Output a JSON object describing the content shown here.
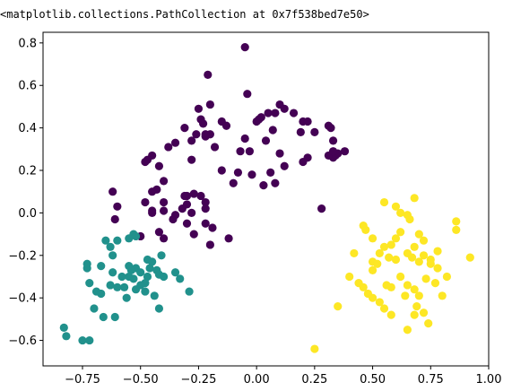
{
  "output": {
    "repr": "<matplotlib.collections.PathCollection at 0x7f538bed7e50>"
  },
  "colors": {
    "cluster_0": "#440154",
    "cluster_1": "#21918c",
    "cluster_2": "#fde725",
    "axes": "#000000",
    "background": "#ffffff"
  },
  "chart_data": {
    "type": "scatter",
    "title": "",
    "xlabel": "",
    "ylabel": "",
    "xlim": [
      -0.92,
      1.0
    ],
    "ylim": [
      -0.72,
      0.85
    ],
    "grid": false,
    "legend": "none",
    "x_ticks": [
      {
        "value": -0.75,
        "label": "−0.75"
      },
      {
        "value": -0.5,
        "label": "−0.50"
      },
      {
        "value": -0.25,
        "label": "−0.25"
      },
      {
        "value": 0.0,
        "label": "0.00"
      },
      {
        "value": 0.25,
        "label": "0.25"
      },
      {
        "value": 0.5,
        "label": "0.50"
      },
      {
        "value": 0.75,
        "label": "0.75"
      },
      {
        "value": 1.0,
        "label": "1.00"
      }
    ],
    "y_ticks": [
      {
        "value": -0.6,
        "label": "−0.6"
      },
      {
        "value": -0.4,
        "label": "−0.4"
      },
      {
        "value": -0.2,
        "label": "−0.2"
      },
      {
        "value": 0.0,
        "label": "0.0"
      },
      {
        "value": 0.2,
        "label": "0.2"
      },
      {
        "value": 0.4,
        "label": "0.4"
      },
      {
        "value": 0.6,
        "label": "0.6"
      },
      {
        "value": 0.8,
        "label": "0.8"
      }
    ],
    "series": [
      {
        "color": "#440154",
        "x": [
          -0.05,
          -0.21,
          -0.04,
          0.1,
          0.05,
          0.02,
          0.16,
          0.12,
          0.2,
          -0.2,
          -0.25,
          -0.24,
          -0.23,
          -0.26,
          -0.22,
          -0.31,
          -0.15,
          -0.13,
          0.22,
          0.19,
          0.25,
          0.31,
          0.32,
          0.33,
          0.07,
          0.04,
          0.08,
          0.0,
          0.01,
          -0.05,
          -0.03,
          -0.07,
          -0.18,
          -0.2,
          -0.22,
          -0.28,
          -0.35,
          -0.38,
          -0.45,
          -0.47,
          -0.48,
          -0.42,
          -0.4,
          -0.43,
          -0.45,
          -0.28,
          -0.15,
          -0.1,
          -0.08,
          0.03,
          0.08,
          0.12,
          0.34,
          0.35,
          0.33,
          0.31,
          0.38,
          0.22,
          0.33,
          0.1,
          0.06,
          -0.02,
          -0.3,
          -0.31,
          -0.27,
          -0.24,
          -0.22,
          -0.3,
          -0.32,
          -0.22,
          -0.28,
          -0.22,
          -0.19,
          -0.12,
          -0.2,
          -0.36,
          -0.4,
          -0.45,
          -0.62,
          -0.6,
          -0.61,
          -0.5,
          -0.4,
          -0.42,
          -0.3,
          -0.27,
          -0.4,
          -0.48,
          -0.45,
          -0.35,
          0.28,
          0.2
        ],
        "y": [
          0.78,
          0.65,
          0.56,
          0.51,
          0.47,
          0.45,
          0.47,
          0.49,
          0.43,
          0.51,
          0.49,
          0.44,
          0.42,
          0.37,
          0.36,
          0.4,
          0.43,
          0.41,
          0.43,
          0.38,
          0.38,
          0.41,
          0.4,
          0.34,
          0.39,
          0.34,
          0.47,
          0.43,
          0.44,
          0.35,
          0.29,
          0.29,
          0.31,
          0.37,
          0.37,
          0.34,
          0.33,
          0.31,
          0.27,
          0.25,
          0.24,
          0.22,
          0.15,
          0.11,
          0.1,
          0.25,
          0.2,
          0.14,
          0.19,
          0.13,
          0.14,
          0.22,
          0.27,
          0.28,
          0.26,
          0.27,
          0.29,
          0.26,
          0.29,
          0.28,
          0.19,
          0.18,
          0.08,
          0.08,
          0.09,
          0.08,
          0.05,
          0.04,
          0.02,
          0.02,
          0.0,
          -0.05,
          -0.07,
          -0.12,
          -0.15,
          -0.03,
          0.05,
          0.01,
          0.1,
          0.03,
          -0.03,
          -0.11,
          0.01,
          -0.09,
          -0.05,
          -0.1,
          -0.12,
          0.05,
          0.0,
          -0.01,
          0.02,
          0.24
        ]
      },
      {
        "color": "#21918c",
        "x": [
          -0.53,
          -0.6,
          -0.55,
          -0.52,
          -0.47,
          -0.41,
          -0.45,
          -0.63,
          -0.65,
          -0.62,
          -0.73,
          -0.73,
          -0.67,
          -0.55,
          -0.52,
          -0.54,
          -0.5,
          -0.46,
          -0.43,
          -0.47,
          -0.42,
          -0.4,
          -0.48,
          -0.53,
          -0.55,
          -0.57,
          -0.58,
          -0.62,
          -0.63,
          -0.69,
          -0.72,
          -0.67,
          -0.7,
          -0.66,
          -0.6,
          -0.52,
          -0.5,
          -0.48,
          -0.44,
          -0.42,
          -0.35,
          -0.33,
          -0.29,
          -0.56,
          -0.61,
          -0.75,
          -0.83,
          -0.82,
          -0.72
        ],
        "y": [
          -0.1,
          -0.13,
          -0.12,
          -0.11,
          -0.22,
          -0.2,
          -0.23,
          -0.16,
          -0.13,
          -0.2,
          -0.26,
          -0.24,
          -0.25,
          -0.25,
          -0.26,
          -0.27,
          -0.28,
          -0.26,
          -0.27,
          -0.3,
          -0.29,
          -0.3,
          -0.33,
          -0.31,
          -0.3,
          -0.35,
          -0.3,
          -0.28,
          -0.34,
          -0.37,
          -0.33,
          -0.38,
          -0.45,
          -0.49,
          -0.35,
          -0.36,
          -0.34,
          -0.37,
          -0.39,
          -0.45,
          -0.28,
          -0.31,
          -0.37,
          -0.4,
          -0.49,
          -0.6,
          -0.54,
          -0.58,
          -0.6
        ]
      },
      {
        "color": "#fde725",
        "x": [
          0.55,
          0.62,
          0.6,
          0.65,
          0.66,
          0.68,
          0.72,
          0.7,
          0.68,
          0.75,
          0.78,
          0.82,
          0.86,
          0.86,
          0.92,
          0.58,
          0.6,
          0.62,
          0.65,
          0.67,
          0.7,
          0.72,
          0.75,
          0.78,
          0.55,
          0.5,
          0.47,
          0.46,
          0.42,
          0.5,
          0.52,
          0.57,
          0.6,
          0.62,
          0.65,
          0.68,
          0.7,
          0.73,
          0.77,
          0.8,
          0.74,
          0.68,
          0.65,
          0.58,
          0.55,
          0.53,
          0.5,
          0.48,
          0.46,
          0.44,
          0.4,
          0.35,
          0.25,
          0.56,
          0.58,
          0.64,
          0.69,
          0.72,
          0.5,
          0.53
        ],
        "y": [
          0.05,
          0.0,
          0.03,
          -0.01,
          -0.03,
          0.07,
          -0.13,
          -0.1,
          -0.16,
          -0.22,
          -0.18,
          -0.3,
          -0.04,
          -0.08,
          -0.21,
          -0.15,
          -0.12,
          -0.09,
          -0.19,
          -0.21,
          -0.23,
          -0.2,
          -0.24,
          -0.26,
          -0.16,
          -0.12,
          -0.08,
          -0.06,
          -0.19,
          -0.23,
          -0.24,
          -0.21,
          -0.22,
          -0.3,
          -0.34,
          -0.36,
          -0.39,
          -0.31,
          -0.33,
          -0.39,
          -0.52,
          -0.48,
          -0.55,
          -0.48,
          -0.45,
          -0.42,
          -0.4,
          -0.38,
          -0.35,
          -0.33,
          -0.3,
          -0.44,
          -0.64,
          -0.34,
          -0.35,
          -0.39,
          -0.44,
          -0.47,
          -0.27,
          -0.19
        ]
      }
    ]
  }
}
